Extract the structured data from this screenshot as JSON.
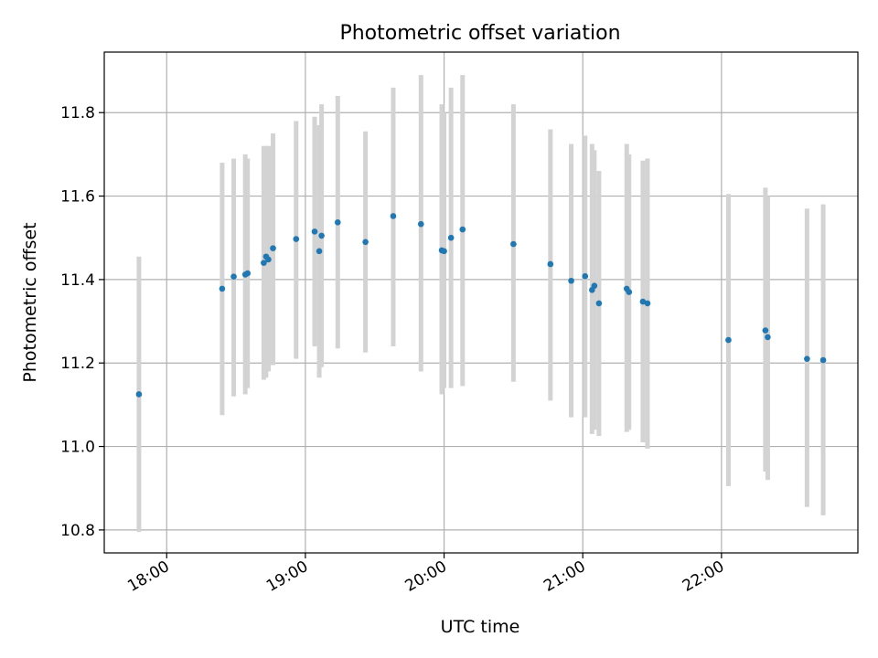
{
  "chart_data": {
    "type": "scatter",
    "title": "Photometric offset variation",
    "xlabel": "UTC time",
    "ylabel": "Photometric offset",
    "x_tick_labels": [
      "18:00",
      "19:00",
      "20:00",
      "21:00",
      "22:00"
    ],
    "y_tick_labels": [
      "10.8",
      "11.0",
      "11.2",
      "11.4",
      "11.6",
      "11.8"
    ],
    "xlim": [
      "17:33",
      "22:59"
    ],
    "ylim": [
      10.745,
      11.945
    ],
    "grid": true,
    "colors": {
      "point": "#1f77b4",
      "errorbar": "#d3d3d3",
      "grid": "#b0b0b0"
    },
    "series": [
      {
        "points": [
          {
            "x": "17:48",
            "y": 11.125,
            "ylow": 10.795,
            "yhigh": 11.455
          },
          {
            "x": "18:24",
            "y": 11.378,
            "ylow": 11.075,
            "yhigh": 11.68
          },
          {
            "x": "18:29",
            "y": 11.407,
            "ylow": 11.12,
            "yhigh": 11.69
          },
          {
            "x": "18:34",
            "y": 11.412,
            "ylow": 11.125,
            "yhigh": 11.7
          },
          {
            "x": "18:35",
            "y": 11.415,
            "ylow": 11.14,
            "yhigh": 11.69
          },
          {
            "x": "18:42",
            "y": 11.44,
            "ylow": 11.16,
            "yhigh": 11.72
          },
          {
            "x": "18:43",
            "y": 11.455,
            "ylow": 11.165,
            "yhigh": 11.72
          },
          {
            "x": "18:44",
            "y": 11.448,
            "ylow": 11.18,
            "yhigh": 11.72
          },
          {
            "x": "18:46",
            "y": 11.475,
            "ylow": 11.195,
            "yhigh": 11.75
          },
          {
            "x": "18:56",
            "y": 11.497,
            "ylow": 11.21,
            "yhigh": 11.78
          },
          {
            "x": "19:04",
            "y": 11.515,
            "ylow": 11.24,
            "yhigh": 11.79
          },
          {
            "x": "19:06",
            "y": 11.468,
            "ylow": 11.165,
            "yhigh": 11.77
          },
          {
            "x": "19:07",
            "y": 11.505,
            "ylow": 11.19,
            "yhigh": 11.82
          },
          {
            "x": "19:14",
            "y": 11.537,
            "ylow": 11.235,
            "yhigh": 11.84
          },
          {
            "x": "19:26",
            "y": 11.49,
            "ylow": 11.225,
            "yhigh": 11.755
          },
          {
            "x": "19:38",
            "y": 11.552,
            "ylow": 11.24,
            "yhigh": 11.86
          },
          {
            "x": "19:50",
            "y": 11.533,
            "ylow": 11.18,
            "yhigh": 11.89
          },
          {
            "x": "19:59",
            "y": 11.47,
            "ylow": 11.125,
            "yhigh": 11.82
          },
          {
            "x": "20:00",
            "y": 11.468,
            "ylow": 11.14,
            "yhigh": 11.8
          },
          {
            "x": "20:03",
            "y": 11.5,
            "ylow": 11.14,
            "yhigh": 11.86
          },
          {
            "x": "20:08",
            "y": 11.52,
            "ylow": 11.145,
            "yhigh": 11.89
          },
          {
            "x": "20:30",
            "y": 11.485,
            "ylow": 11.155,
            "yhigh": 11.82
          },
          {
            "x": "20:46",
            "y": 11.437,
            "ylow": 11.11,
            "yhigh": 11.76
          },
          {
            "x": "20:55",
            "y": 11.397,
            "ylow": 11.07,
            "yhigh": 11.725
          },
          {
            "x": "21:01",
            "y": 11.408,
            "ylow": 11.07,
            "yhigh": 11.745
          },
          {
            "x": "21:04",
            "y": 11.375,
            "ylow": 11.03,
            "yhigh": 11.725
          },
          {
            "x": "21:05",
            "y": 11.385,
            "ylow": 11.04,
            "yhigh": 11.71
          },
          {
            "x": "21:07",
            "y": 11.343,
            "ylow": 11.025,
            "yhigh": 11.66
          },
          {
            "x": "21:19",
            "y": 11.378,
            "ylow": 11.035,
            "yhigh": 11.725
          },
          {
            "x": "21:20",
            "y": 11.37,
            "ylow": 11.04,
            "yhigh": 11.7
          },
          {
            "x": "21:26",
            "y": 11.347,
            "ylow": 11.01,
            "yhigh": 11.685
          },
          {
            "x": "21:28",
            "y": 11.343,
            "ylow": 10.995,
            "yhigh": 11.69
          },
          {
            "x": "22:03",
            "y": 11.255,
            "ylow": 10.905,
            "yhigh": 11.605
          },
          {
            "x": "22:19",
            "y": 11.278,
            "ylow": 10.94,
            "yhigh": 11.62
          },
          {
            "x": "22:20",
            "y": 11.262,
            "ylow": 10.92,
            "yhigh": 11.6
          },
          {
            "x": "22:37",
            "y": 11.21,
            "ylow": 10.855,
            "yhigh": 11.57
          },
          {
            "x": "22:44",
            "y": 11.207,
            "ylow": 10.835,
            "yhigh": 11.58
          }
        ]
      }
    ]
  }
}
